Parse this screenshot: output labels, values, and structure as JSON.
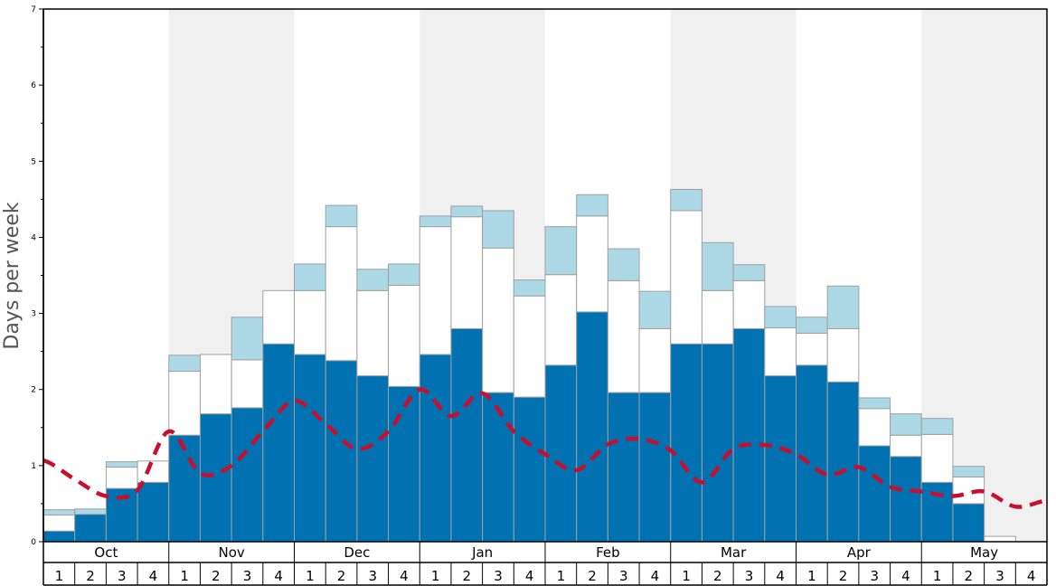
{
  "chart_data": {
    "type": "bar",
    "ylabel": "Days per week",
    "ylim": [
      0,
      7
    ],
    "y_ticks": [
      "0",
      "1",
      "2",
      "3",
      "4",
      "5",
      "6",
      "7"
    ],
    "grid": false,
    "months": [
      "Oct",
      "Nov",
      "Dec",
      "Jan",
      "Feb",
      "Mar",
      "Apr",
      "May"
    ],
    "week_labels": [
      "1",
      "2",
      "3",
      "4"
    ],
    "shaded_months": [
      "Nov",
      "Jan",
      "Mar",
      "May"
    ],
    "stack_order": [
      "dark blue base",
      "white middle",
      "light blue top"
    ],
    "colors": {
      "base": "#0072b2",
      "middle": "#ffffff",
      "top": "#add8e6",
      "line": "#c8102e",
      "band": "#f0f0f0",
      "bar_edge": "#a0a0a0"
    },
    "series": [
      {
        "values": [
          0.14,
          0.36,
          0.7,
          0.78,
          1.4,
          1.68,
          1.76,
          2.6,
          2.46,
          2.38,
          2.18,
          2.04,
          2.46,
          2.8,
          1.96,
          1.9,
          2.32,
          3.02,
          1.96,
          1.96,
          2.6,
          2.6,
          2.8,
          2.18,
          2.32,
          2.1,
          1.26,
          1.12,
          0.78,
          0.5,
          0.0,
          0.0
        ]
      },
      {
        "values": [
          0.21,
          0.0,
          0.28,
          0.28,
          0.84,
          0.78,
          0.63,
          0.7,
          0.84,
          1.76,
          1.12,
          1.33,
          1.68,
          1.47,
          1.9,
          1.33,
          1.19,
          1.26,
          1.47,
          0.84,
          1.75,
          0.7,
          0.63,
          0.63,
          0.42,
          0.7,
          0.49,
          0.28,
          0.63,
          0.35,
          0.07,
          0.0
        ]
      },
      {
        "values": [
          0.07,
          0.07,
          0.07,
          0.0,
          0.21,
          0.0,
          0.56,
          0.0,
          0.35,
          0.28,
          0.28,
          0.28,
          0.14,
          0.14,
          0.49,
          0.21,
          0.63,
          0.28,
          0.42,
          0.49,
          0.28,
          0.63,
          0.21,
          0.28,
          0.21,
          0.56,
          0.14,
          0.28,
          0.21,
          0.14,
          0.0,
          0.0
        ]
      }
    ],
    "line": {
      "style": "dashed",
      "values": [
        1.07,
        0.82,
        0.6,
        0.68,
        1.45,
        0.9,
        1.0,
        1.45,
        1.85,
        1.55,
        1.22,
        1.45,
        2.0,
        1.65,
        1.95,
        1.45,
        1.15,
        0.94,
        1.28,
        1.35,
        1.2,
        0.78,
        1.22,
        1.27,
        1.15,
        0.88,
        0.98,
        0.72,
        0.66,
        0.6,
        0.66,
        0.46,
        0.54
      ]
    }
  }
}
